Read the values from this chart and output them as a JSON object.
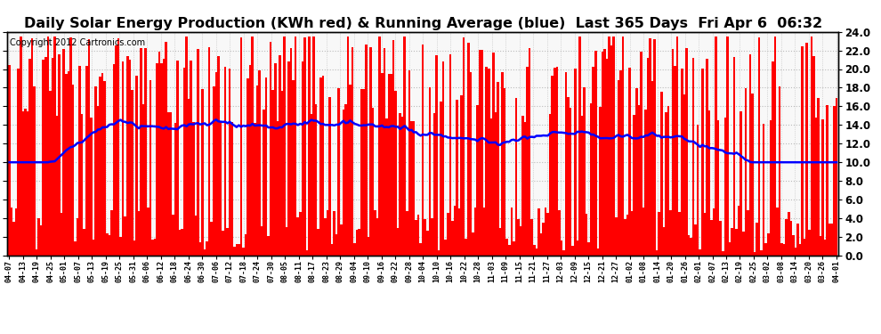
{
  "title": "Daily Solar Energy Production (KWh red) & Running Average (blue)  Last 365 Days  Fri Apr 6  06:32",
  "copyright_text": "Copyright 2012 Cartronics.com",
  "ylim": [
    0.0,
    24.0
  ],
  "ytick_step": 2.0,
  "bar_color": "#ff0000",
  "line_color": "#0000ff",
  "bg_color": "#ffffff",
  "plot_bg_color": "#f8f8f8",
  "grid_color": "#bbbbbb",
  "title_fontsize": 11.5,
  "copyright_fontsize": 7,
  "num_days": 365,
  "running_avg_value": 13.0,
  "x_tick_labels": [
    "04-07",
    "04-13",
    "04-19",
    "04-25",
    "05-01",
    "05-07",
    "05-13",
    "05-19",
    "05-25",
    "05-31",
    "06-06",
    "06-12",
    "06-18",
    "06-24",
    "06-30",
    "07-06",
    "07-12",
    "07-18",
    "07-24",
    "07-30",
    "08-05",
    "08-11",
    "08-17",
    "08-23",
    "08-29",
    "09-04",
    "09-10",
    "09-16",
    "09-22",
    "09-28",
    "10-04",
    "10-10",
    "10-16",
    "10-22",
    "10-28",
    "11-03",
    "11-09",
    "11-15",
    "11-21",
    "11-27",
    "12-03",
    "12-09",
    "12-15",
    "12-21",
    "12-27",
    "01-02",
    "01-08",
    "01-14",
    "01-20",
    "01-26",
    "02-01",
    "02-07",
    "02-13",
    "02-19",
    "02-25",
    "03-02",
    "03-08",
    "03-14",
    "03-20",
    "03-26",
    "04-01"
  ]
}
